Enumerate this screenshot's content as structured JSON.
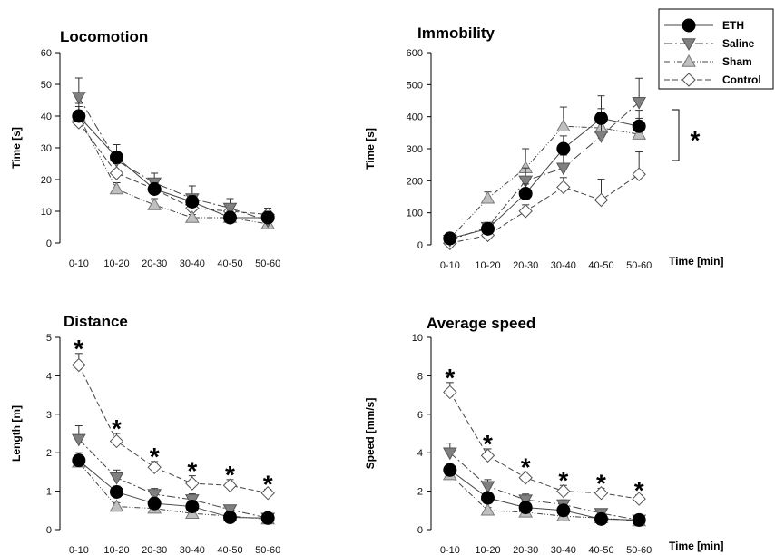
{
  "legend": [
    {
      "name": "ETH",
      "marker": "circle",
      "fill": "#000000",
      "dash": ""
    },
    {
      "name": "Saline",
      "marker": "triangle-down",
      "fill": "#808080",
      "dash": "9 3 2 3"
    },
    {
      "name": "Sham",
      "marker": "triangle-up",
      "fill": "#c0c0c0",
      "dash": "6 2 1 2 1 2"
    },
    {
      "name": "Control",
      "marker": "diamond",
      "fill": "#ffffff",
      "dash": "6 3"
    }
  ],
  "bracket_star": "*",
  "chart_data": [
    {
      "type": "line",
      "title": "Locomotion",
      "ylabel": "Time [s]",
      "xlabel": "",
      "categories": [
        "0-10",
        "10-20",
        "20-30",
        "30-40",
        "40-50",
        "50-60"
      ],
      "ylim": [
        0,
        60
      ],
      "yticks": [
        0,
        10,
        20,
        30,
        40,
        50,
        60
      ],
      "series": [
        {
          "name": "ETH",
          "values": [
            40,
            27,
            17,
            13,
            8,
            8
          ],
          "err": [
            4,
            4,
            2,
            2,
            2,
            2
          ]
        },
        {
          "name": "Saline",
          "values": [
            46,
            26,
            19,
            14,
            11,
            7
          ],
          "err": [
            6,
            3,
            3,
            4,
            3,
            3
          ]
        },
        {
          "name": "Sham",
          "values": [
            40,
            17,
            12,
            8,
            8,
            6
          ],
          "err": [
            3,
            2,
            2,
            1,
            1,
            1
          ]
        },
        {
          "name": "Control",
          "values": [
            38,
            22,
            17,
            11,
            10,
            9
          ],
          "err": [
            3,
            3,
            2,
            2,
            2,
            2
          ]
        }
      ],
      "stars": []
    },
    {
      "type": "line",
      "title": "Immobility",
      "ylabel": "Time [s]",
      "xlabel": "Time [min]",
      "categories": [
        "0-10",
        "10-20",
        "20-30",
        "30-40",
        "40-50",
        "50-60"
      ],
      "ylim": [
        0,
        600
      ],
      "yticks": [
        0,
        100,
        200,
        300,
        400,
        500,
        600
      ],
      "series": [
        {
          "name": "ETH",
          "values": [
            20,
            50,
            160,
            300,
            395,
            370
          ],
          "err": [
            10,
            15,
            30,
            40,
            70,
            50
          ]
        },
        {
          "name": "Saline",
          "values": [
            15,
            55,
            200,
            240,
            340,
            445
          ],
          "err": [
            10,
            15,
            40,
            40,
            50,
            75
          ]
        },
        {
          "name": "Sham",
          "values": [
            20,
            145,
            240,
            370,
            365,
            345
          ],
          "err": [
            10,
            20,
            60,
            60,
            60,
            50
          ]
        },
        {
          "name": "Control",
          "values": [
            5,
            30,
            105,
            180,
            140,
            220
          ],
          "err": [
            5,
            10,
            20,
            30,
            65,
            70
          ]
        }
      ],
      "stars": []
    },
    {
      "type": "line",
      "title": "Distance",
      "ylabel": "Length [m]",
      "xlabel": "",
      "categories": [
        "0-10",
        "10-20",
        "20-30",
        "30-40",
        "40-50",
        "50-60"
      ],
      "ylim": [
        0,
        5
      ],
      "yticks": [
        0,
        1,
        2,
        3,
        4,
        5
      ],
      "series": [
        {
          "name": "ETH",
          "values": [
            1.8,
            0.98,
            0.68,
            0.6,
            0.32,
            0.3
          ],
          "err": [
            0.2,
            0.15,
            0.15,
            0.15,
            0.1,
            0.1
          ]
        },
        {
          "name": "Saline",
          "values": [
            2.35,
            1.35,
            0.92,
            0.78,
            0.52,
            0.3
          ],
          "err": [
            0.35,
            0.2,
            0.15,
            0.15,
            0.1,
            0.1
          ]
        },
        {
          "name": "Sham",
          "values": [
            1.75,
            0.6,
            0.55,
            0.42,
            0.35,
            0.27
          ],
          "err": [
            0.15,
            0.1,
            0.1,
            0.1,
            0.05,
            0.05
          ]
        },
        {
          "name": "Control",
          "values": [
            4.28,
            2.3,
            1.62,
            1.2,
            1.15,
            0.95
          ],
          "err": [
            0.3,
            0.2,
            0.15,
            0.2,
            0.15,
            0.1
          ]
        }
      ],
      "stars": [
        "*",
        "*",
        "*",
        "*",
        "*",
        "*"
      ]
    },
    {
      "type": "line",
      "title": "Average speed",
      "ylabel": "Speed [mm/s]",
      "xlabel": "Time [min]",
      "categories": [
        "0-10",
        "10-20",
        "20-30",
        "30-40",
        "40-50",
        "50-60"
      ],
      "ylim": [
        0,
        10
      ],
      "yticks": [
        0,
        2,
        4,
        6,
        8,
        10
      ],
      "series": [
        {
          "name": "ETH",
          "values": [
            3.1,
            1.65,
            1.15,
            1.0,
            0.55,
            0.5
          ],
          "err": [
            0.3,
            0.3,
            0.25,
            0.25,
            0.15,
            0.15
          ]
        },
        {
          "name": "Saline",
          "values": [
            4.0,
            2.25,
            1.55,
            1.3,
            0.85,
            0.5
          ],
          "err": [
            0.5,
            0.35,
            0.3,
            0.25,
            0.2,
            0.15
          ]
        },
        {
          "name": "Sham",
          "values": [
            2.85,
            1.0,
            0.9,
            0.7,
            0.6,
            0.45
          ],
          "err": [
            0.3,
            0.15,
            0.15,
            0.15,
            0.1,
            0.1
          ]
        },
        {
          "name": "Control",
          "values": [
            7.15,
            3.85,
            2.7,
            2.0,
            1.9,
            1.6
          ],
          "err": [
            0.5,
            0.35,
            0.3,
            0.3,
            0.25,
            0.2
          ]
        }
      ],
      "stars": [
        "*",
        "*",
        "*",
        "*",
        "*",
        "*"
      ]
    }
  ]
}
